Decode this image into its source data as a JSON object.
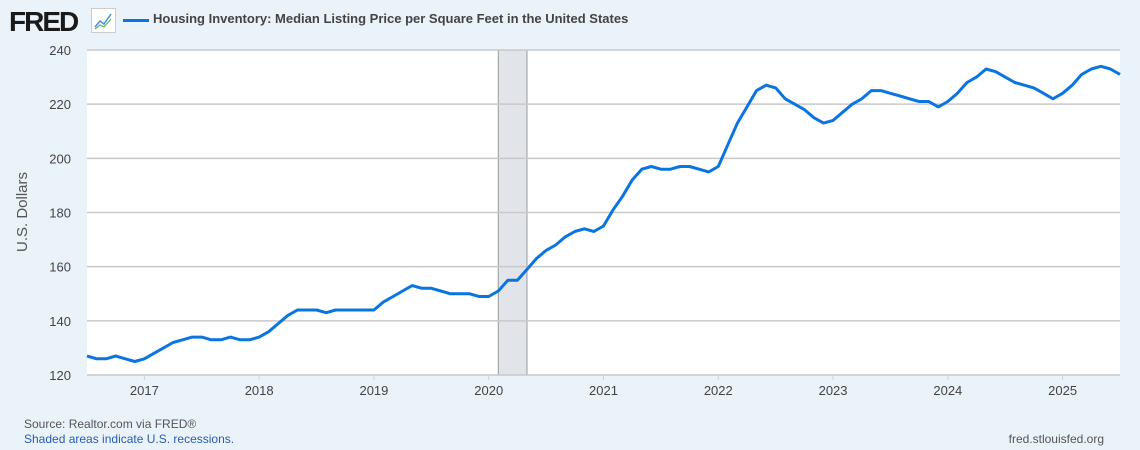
{
  "header": {
    "logo": "FRED",
    "logo_icon": "line-chart-icon",
    "title": "Housing Inventory: Median Listing Price per Square Feet in the United States"
  },
  "footer": {
    "source": "Source: Realtor.com via FRED®",
    "note": "Shaded areas indicate U.S. recessions.",
    "url": "fred.stlouisfed.org"
  },
  "colors": {
    "line": "#0a75e0",
    "recession": "#e1e5ea",
    "background": "#eaf2fa"
  },
  "chart_data": {
    "type": "line",
    "title": "Housing Inventory: Median Listing Price per Square Feet in the United States",
    "ylabel": "U.S. Dollars",
    "xlabel": "",
    "ylim": [
      120,
      240
    ],
    "xlim": [
      "2016-07",
      "2025-07"
    ],
    "yticks": [
      120,
      140,
      160,
      180,
      200,
      220,
      240
    ],
    "xticks": [
      "2017",
      "2018",
      "2019",
      "2020",
      "2021",
      "2022",
      "2023",
      "2024",
      "2025"
    ],
    "grid": true,
    "frequency": "monthly",
    "start": "2016-07",
    "recessions": [
      [
        "2020-02",
        "2020-04"
      ]
    ],
    "series": [
      {
        "name": "Housing Inventory: Median Listing Price per Square Feet in the United States",
        "values": [
          127,
          126,
          126,
          127,
          126,
          125,
          126,
          128,
          130,
          132,
          133,
          134,
          134,
          133,
          133,
          134,
          133,
          133,
          134,
          136,
          139,
          142,
          144,
          144,
          144,
          143,
          144,
          144,
          144,
          144,
          144,
          147,
          149,
          151,
          153,
          152,
          152,
          151,
          150,
          150,
          150,
          149,
          149,
          151,
          155,
          155,
          159,
          163,
          166,
          168,
          171,
          173,
          174,
          173,
          175,
          181,
          186,
          192,
          196,
          197,
          196,
          196,
          197,
          197,
          196,
          195,
          197,
          205,
          213,
          219,
          225,
          227,
          226,
          222,
          220,
          218,
          215,
          213,
          214,
          217,
          220,
          222,
          225,
          225,
          224,
          223,
          222,
          221,
          221,
          219,
          221,
          224,
          228,
          230,
          233,
          232,
          230,
          228,
          227,
          226,
          224,
          222,
          224,
          227,
          231,
          233,
          234,
          233,
          231
        ]
      }
    ]
  }
}
